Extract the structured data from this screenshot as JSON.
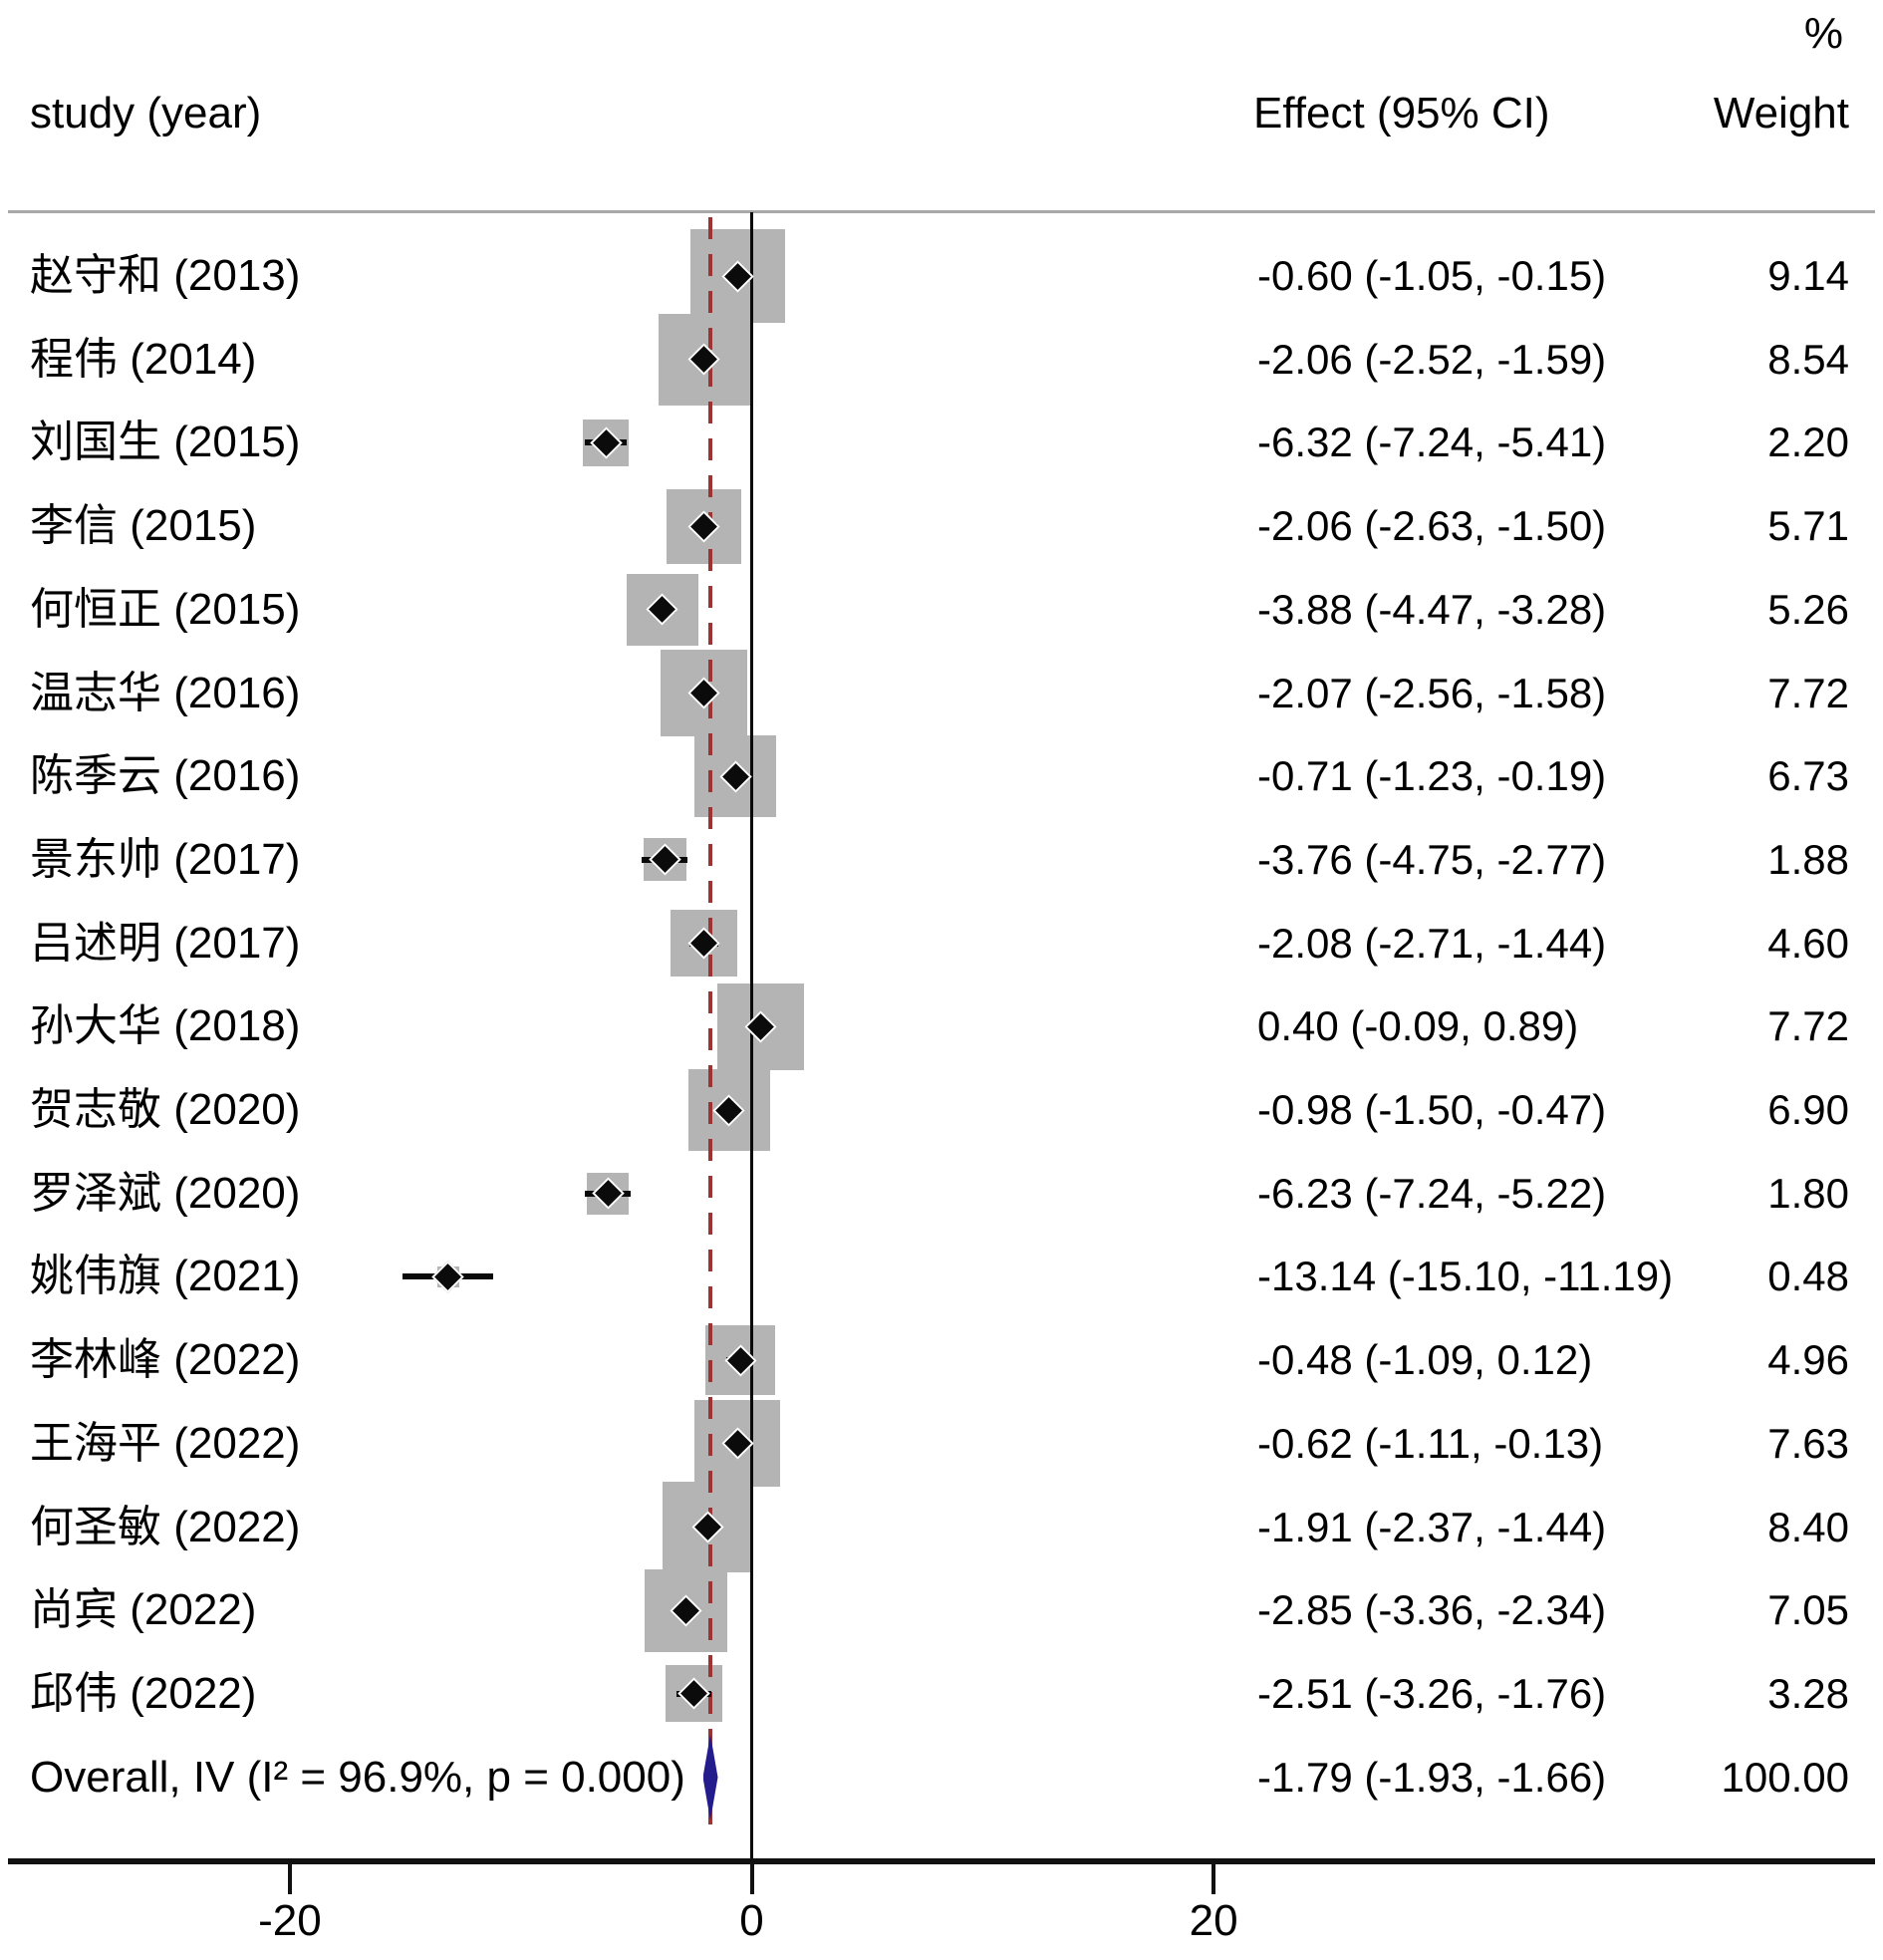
{
  "header": {
    "study_col": "study (year)",
    "effect_col": "Effect (95% CI)",
    "weight_col": "Weight",
    "percent_label": "%"
  },
  "colors": {
    "weight_box": "#b4b4b4",
    "marker": "#0b0b0b",
    "null_dash_line": "#9c3434",
    "overall_diamond": "#231c8c",
    "separator": "#a8a8a8",
    "axis": "#111111"
  },
  "chart_data": {
    "type": "forest",
    "x_ticks": [
      "-20",
      "0",
      "20"
    ],
    "x_tick_values": [
      -20,
      0,
      20
    ],
    "zero_reference_x": 0,
    "overall_reference_x": -1.79,
    "legend_position": "none",
    "grid": false,
    "studies": [
      {
        "label": "赵守和 (2013)",
        "effect": -0.6,
        "ci_lo": -1.05,
        "ci_hi": -0.15,
        "effect_text": "-0.60 (-1.05, -0.15)",
        "weight": 9.14,
        "weight_text": "9.14"
      },
      {
        "label": "程伟 (2014)",
        "effect": -2.06,
        "ci_lo": -2.52,
        "ci_hi": -1.59,
        "effect_text": "-2.06 (-2.52, -1.59)",
        "weight": 8.54,
        "weight_text": "8.54"
      },
      {
        "label": "刘国生 (2015)",
        "effect": -6.32,
        "ci_lo": -7.24,
        "ci_hi": -5.41,
        "effect_text": "-6.32 (-7.24, -5.41)",
        "weight": 2.2,
        "weight_text": "2.20"
      },
      {
        "label": "李信 (2015)",
        "effect": -2.06,
        "ci_lo": -2.63,
        "ci_hi": -1.5,
        "effect_text": "-2.06 (-2.63, -1.50)",
        "weight": 5.71,
        "weight_text": "5.71"
      },
      {
        "label": "何恒正 (2015)",
        "effect": -3.88,
        "ci_lo": -4.47,
        "ci_hi": -3.28,
        "effect_text": "-3.88 (-4.47, -3.28)",
        "weight": 5.26,
        "weight_text": "5.26"
      },
      {
        "label": "温志华 (2016)",
        "effect": -2.07,
        "ci_lo": -2.56,
        "ci_hi": -1.58,
        "effect_text": "-2.07 (-2.56, -1.58)",
        "weight": 7.72,
        "weight_text": "7.72"
      },
      {
        "label": "陈季云 (2016)",
        "effect": -0.71,
        "ci_lo": -1.23,
        "ci_hi": -0.19,
        "effect_text": "-0.71 (-1.23, -0.19)",
        "weight": 6.73,
        "weight_text": "6.73"
      },
      {
        "label": "景东帅 (2017)",
        "effect": -3.76,
        "ci_lo": -4.75,
        "ci_hi": -2.77,
        "effect_text": "-3.76 (-4.75, -2.77)",
        "weight": 1.88,
        "weight_text": "1.88"
      },
      {
        "label": "吕述明 (2017)",
        "effect": -2.08,
        "ci_lo": -2.71,
        "ci_hi": -1.44,
        "effect_text": "-2.08 (-2.71, -1.44)",
        "weight": 4.6,
        "weight_text": "4.60"
      },
      {
        "label": "孙大华 (2018)",
        "effect": 0.4,
        "ci_lo": -0.09,
        "ci_hi": 0.89,
        "effect_text": "0.40 (-0.09, 0.89)",
        "weight": 7.72,
        "weight_text": "7.72"
      },
      {
        "label": "贺志敬 (2020)",
        "effect": -0.98,
        "ci_lo": -1.5,
        "ci_hi": -0.47,
        "effect_text": "-0.98 (-1.50, -0.47)",
        "weight": 6.9,
        "weight_text": "6.90"
      },
      {
        "label": "罗泽斌 (2020)",
        "effect": -6.23,
        "ci_lo": -7.24,
        "ci_hi": -5.22,
        "effect_text": "-6.23 (-7.24, -5.22)",
        "weight": 1.8,
        "weight_text": "1.80"
      },
      {
        "label": "姚伟旗 (2021)",
        "effect": -13.14,
        "ci_lo": -15.1,
        "ci_hi": -11.19,
        "effect_text": "-13.14 (-15.10, -11.19)",
        "weight": 0.48,
        "weight_text": "0.48"
      },
      {
        "label": "李林峰 (2022)",
        "effect": -0.48,
        "ci_lo": -1.09,
        "ci_hi": 0.12,
        "effect_text": "-0.48 (-1.09, 0.12)",
        "weight": 4.96,
        "weight_text": "4.96"
      },
      {
        "label": "王海平 (2022)",
        "effect": -0.62,
        "ci_lo": -1.11,
        "ci_hi": -0.13,
        "effect_text": "-0.62 (-1.11, -0.13)",
        "weight": 7.63,
        "weight_text": "7.63"
      },
      {
        "label": "何圣敏 (2022)",
        "effect": -1.91,
        "ci_lo": -2.37,
        "ci_hi": -1.44,
        "effect_text": "-1.91 (-2.37, -1.44)",
        "weight": 8.4,
        "weight_text": "8.40"
      },
      {
        "label": "尚宾 (2022)",
        "effect": -2.85,
        "ci_lo": -3.36,
        "ci_hi": -2.34,
        "effect_text": "-2.85 (-3.36, -2.34)",
        "weight": 7.05,
        "weight_text": "7.05"
      },
      {
        "label": "邱伟 (2022)",
        "effect": -2.51,
        "ci_lo": -3.26,
        "ci_hi": -1.76,
        "effect_text": "-2.51 (-3.26, -1.76)",
        "weight": 3.28,
        "weight_text": "3.28"
      }
    ],
    "overall": {
      "label": "Overall, IV (I² = 96.9%, p = 0.000)",
      "effect": -1.79,
      "ci_lo": -1.93,
      "ci_hi": -1.66,
      "effect_text": "-1.79 (-1.93, -1.66)",
      "weight_text": "100.00"
    }
  }
}
